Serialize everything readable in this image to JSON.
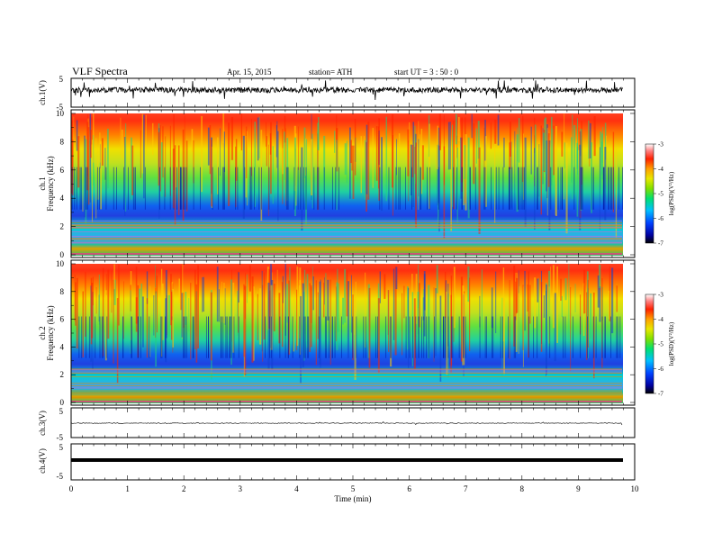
{
  "header": {
    "title": "VLF  Spectra",
    "date": "Apr. 15,  2015",
    "station": "station= ATH",
    "start": "start  UT  =    3  : 50 : 0"
  },
  "chart_data": [
    {
      "type": "line",
      "name": "ch1-waveform",
      "ylabel": "ch.1(V)",
      "ylim": [
        -5,
        5
      ],
      "yticks": [
        "5",
        "-5"
      ],
      "xlim": [
        0,
        10
      ]
    },
    {
      "type": "heatmap",
      "name": "ch1-spectrogram",
      "ylabel": "Frequency (kHz)",
      "channel_label": "ch.1",
      "ylim": [
        0,
        10
      ],
      "yticks": [
        "0",
        "2",
        "4",
        "6",
        "8",
        "10"
      ],
      "xlim": [
        0,
        9.8
      ],
      "colorbar": {
        "label": "log(PSD)(V²/Hz)",
        "range": [
          -7,
          -3
        ],
        "ticks": [
          "-3",
          "-4",
          "-5",
          "-6",
          "-7"
        ]
      }
    },
    {
      "type": "heatmap",
      "name": "ch2-spectrogram",
      "ylabel": "Frequency (kHz)",
      "channel_label": "ch.2",
      "ylim": [
        0,
        10
      ],
      "yticks": [
        "0",
        "2",
        "4",
        "6",
        "8",
        "10"
      ],
      "xlim": [
        0,
        9.8
      ],
      "colorbar": {
        "label": "log(PSD)(V²/Hz)",
        "range": [
          -7,
          -3
        ],
        "ticks": [
          "-3",
          "-4",
          "-5",
          "-6",
          "-7"
        ]
      }
    },
    {
      "type": "line",
      "name": "ch3-waveform",
      "ylabel": "ch.3(V)",
      "ylim": [
        -5,
        5
      ],
      "yticks": [
        "5",
        "-5"
      ],
      "xlim": [
        0,
        10
      ]
    },
    {
      "type": "line",
      "name": "ch4-waveform",
      "ylabel": "ch.4(V)",
      "ylim": [
        -5,
        5
      ],
      "yticks": [
        "5",
        "-5"
      ],
      "xlim": [
        0,
        10
      ],
      "xlabel": "Time  (min)",
      "xticks": [
        "0",
        "1",
        "2",
        "3",
        "4",
        "5",
        "6",
        "7",
        "8",
        "9",
        "10"
      ]
    }
  ]
}
